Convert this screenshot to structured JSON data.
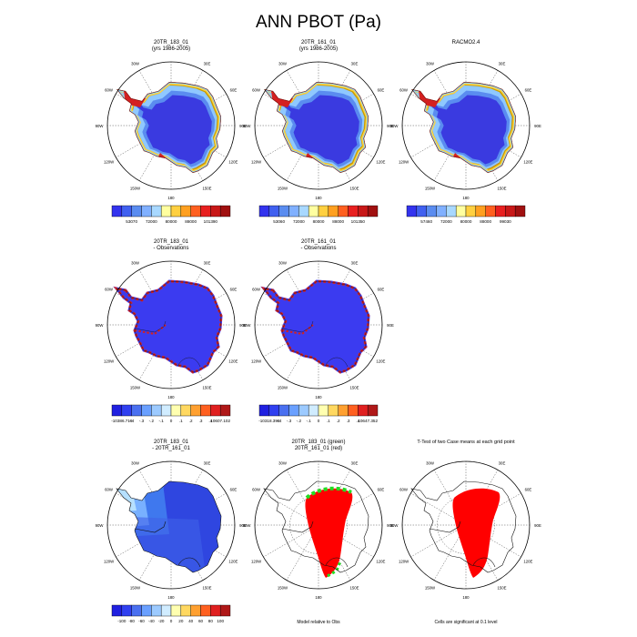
{
  "page_title": "ANN PBOT (Pa)",
  "lon_labels": [
    "30W",
    "30E",
    "60W",
    "60E",
    "90W",
    "90E",
    "120W",
    "120E",
    "150W",
    "150E",
    "180"
  ],
  "colors": {
    "ocean": "#ffffff",
    "coast": "#000000",
    "grid": "#555555",
    "ice_blue": "#3b3bf0",
    "edge_red": "#d42020",
    "sig_red": "#ff0000",
    "sig_green": "#22dd22"
  },
  "chart_data": [
    {
      "type": "heatmap",
      "id": "p1",
      "title": "20TR_183_01",
      "subtitle": "(yrs 1986-2005)",
      "colorbar": {
        "ticks": [
          "53070",
          "72000",
          "80000",
          "88000",
          "101390"
        ]
      },
      "field": "full"
    },
    {
      "type": "heatmap",
      "id": "p2",
      "title": "20TR_161_01",
      "subtitle": "(yrs 1986-2005)",
      "colorbar": {
        "ticks": [
          "53060",
          "72000",
          "80000",
          "88000",
          "101350"
        ]
      },
      "field": "full"
    },
    {
      "type": "heatmap",
      "id": "p3",
      "title": "RACMO2.4",
      "subtitle": "",
      "colorbar": {
        "ticks": [
          "57460",
          "72000",
          "80000",
          "88000",
          "99030"
        ]
      },
      "field": "full"
    },
    {
      "type": "heatmap",
      "id": "p4",
      "title": "20TR_183_01",
      "subtitle": "- Observations",
      "colorbar": {
        "ticks": [
          "-10386.719",
          "-.4",
          "-.3",
          "-.2",
          "-.1",
          "0",
          ".1",
          ".2",
          ".3",
          ".4",
          "10607.102"
        ]
      },
      "field": "bias"
    },
    {
      "type": "heatmap",
      "id": "p5",
      "title": "20TR_161_01",
      "subtitle": "- Observations",
      "colorbar": {
        "ticks": [
          "-10318.398",
          "-.4",
          "-.3",
          "-.2",
          "-.1",
          "0",
          ".1",
          ".2",
          ".3",
          ".4",
          "10647.352"
        ]
      },
      "field": "bias"
    },
    {
      "type": "heatmap",
      "id": "p6",
      "title": "20TR_183_01",
      "subtitle": "- 20TR_161_01",
      "colorbar": {
        "ticks": [
          "-100",
          "-80",
          "-60",
          "-40",
          "-20",
          "0",
          "20",
          "40",
          "60",
          "80",
          "100"
        ]
      },
      "field": "diff"
    },
    {
      "type": "heatmap",
      "id": "p7",
      "title": "20TR_183_01 (green)",
      "subtitle": "20TR_161_01 (red)",
      "caption": "Model relative to Obs",
      "field": "relobs"
    },
    {
      "type": "heatmap",
      "id": "p8",
      "title": "T-Test of two Case means at each grid point",
      "subtitle": "",
      "caption": "Cells are significant at 0.1 level",
      "field": "ttest"
    }
  ]
}
